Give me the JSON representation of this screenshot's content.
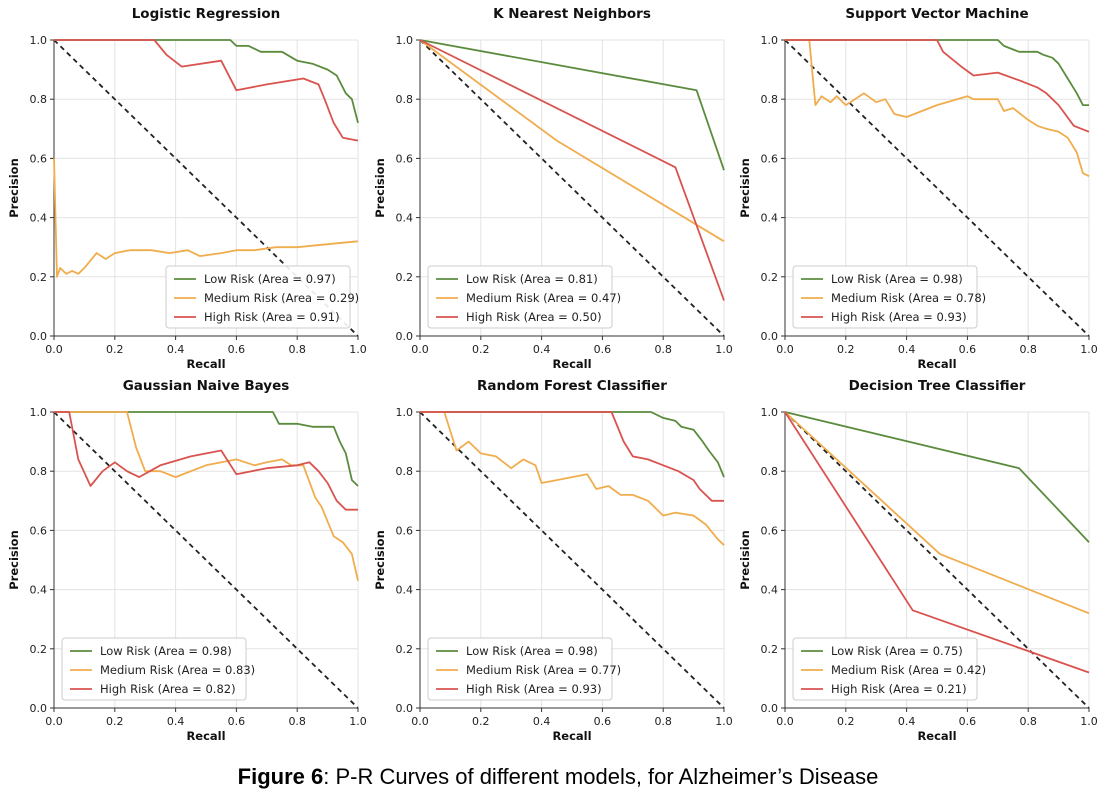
{
  "caption": {
    "label": "Figure 6",
    "text": ": P-R Curves of different models, for Alzheimer’s Disease"
  },
  "colors": {
    "low": "#5b8c3e",
    "medium": "#f0ad4e",
    "high": "#d9534f",
    "diagonal": "#222222"
  },
  "chart_data": [
    {
      "type": "line",
      "title": "Logistic Regression",
      "xlabel": "Recall",
      "ylabel": "Precision",
      "xlim": [
        0,
        1
      ],
      "ylim": [
        0,
        1
      ],
      "xticks": [
        "0.0",
        "0.2",
        "0.4",
        "0.6",
        "0.8",
        "1.0"
      ],
      "yticks": [
        "0.0",
        "0.2",
        "0.4",
        "0.6",
        "0.8",
        "1.0"
      ],
      "grid": true,
      "legend": "bottom-right",
      "series": [
        {
          "name": "Low Risk (Area = 0.97)",
          "color": "low",
          "x": [
            0,
            0.33,
            0.58,
            0.6,
            0.64,
            0.68,
            0.75,
            0.8,
            0.85,
            0.9,
            0.93,
            0.96,
            0.98,
            1.0
          ],
          "y": [
            1,
            1,
            1,
            0.98,
            0.98,
            0.96,
            0.96,
            0.93,
            0.92,
            0.9,
            0.88,
            0.82,
            0.8,
            0.72
          ]
        },
        {
          "name": "Medium Risk (Area = 0.29)",
          "color": "medium",
          "x": [
            0,
            0.01,
            0.02,
            0.04,
            0.06,
            0.08,
            0.1,
            0.14,
            0.17,
            0.2,
            0.25,
            0.28,
            0.32,
            0.38,
            0.44,
            0.48,
            0.55,
            0.6,
            0.66,
            0.73,
            0.8,
            0.9,
            1.0
          ],
          "y": [
            0.6,
            0.2,
            0.23,
            0.21,
            0.22,
            0.21,
            0.23,
            0.28,
            0.26,
            0.28,
            0.29,
            0.29,
            0.29,
            0.28,
            0.29,
            0.27,
            0.28,
            0.29,
            0.29,
            0.3,
            0.3,
            0.31,
            0.32
          ]
        },
        {
          "name": "High Risk (Area = 0.91)",
          "color": "high",
          "x": [
            0,
            0.33,
            0.37,
            0.42,
            0.55,
            0.6,
            0.7,
            0.82,
            0.87,
            0.89,
            0.92,
            0.95,
            1.0
          ],
          "y": [
            1,
            1,
            0.95,
            0.91,
            0.93,
            0.83,
            0.85,
            0.87,
            0.85,
            0.8,
            0.72,
            0.67,
            0.66
          ]
        }
      ]
    },
    {
      "type": "line",
      "title": "K Nearest Neighbors",
      "xlabel": "Recall",
      "ylabel": "Precision",
      "xlim": [
        0,
        1
      ],
      "ylim": [
        0,
        1
      ],
      "xticks": [
        "0.0",
        "0.2",
        "0.4",
        "0.6",
        "0.8",
        "1.0"
      ],
      "yticks": [
        "0.0",
        "0.2",
        "0.4",
        "0.6",
        "0.8",
        "1.0"
      ],
      "grid": true,
      "legend": "bottom-left",
      "series": [
        {
          "name": "Low Risk (Area = 0.81)",
          "color": "low",
          "x": [
            0,
            0.91,
            1.0
          ],
          "y": [
            1,
            0.83,
            0.56
          ]
        },
        {
          "name": "Medium Risk (Area = 0.47)",
          "color": "medium",
          "x": [
            0,
            0.45,
            1.0
          ],
          "y": [
            1,
            0.66,
            0.32
          ]
        },
        {
          "name": "High Risk (Area = 0.50)",
          "color": "high",
          "x": [
            0,
            0.84,
            1.0
          ],
          "y": [
            1,
            0.57,
            0.12
          ]
        }
      ]
    },
    {
      "type": "line",
      "title": "Support Vector Machine",
      "xlabel": "Recall",
      "ylabel": "Precision",
      "xlim": [
        0,
        1
      ],
      "ylim": [
        0,
        1
      ],
      "xticks": [
        "0.0",
        "0.2",
        "0.4",
        "0.6",
        "0.8",
        "1.0"
      ],
      "yticks": [
        "0.0",
        "0.2",
        "0.4",
        "0.6",
        "0.8",
        "1.0"
      ],
      "grid": true,
      "legend": "bottom-left",
      "series": [
        {
          "name": "Low Risk (Area = 0.98)",
          "color": "low",
          "x": [
            0,
            0.7,
            0.72,
            0.77,
            0.83,
            0.85,
            0.88,
            0.9,
            0.93,
            0.96,
            0.98,
            1.0
          ],
          "y": [
            1,
            1,
            0.98,
            0.96,
            0.96,
            0.95,
            0.94,
            0.92,
            0.87,
            0.82,
            0.78,
            0.78
          ]
        },
        {
          "name": "Medium Risk (Area = 0.78)",
          "color": "medium",
          "x": [
            0,
            0.08,
            0.1,
            0.12,
            0.15,
            0.17,
            0.2,
            0.23,
            0.26,
            0.3,
            0.33,
            0.36,
            0.4,
            0.5,
            0.6,
            0.62,
            0.66,
            0.7,
            0.72,
            0.75,
            0.8,
            0.83,
            0.86,
            0.9,
            0.93,
            0.96,
            0.98,
            1.0
          ],
          "y": [
            1,
            1,
            0.78,
            0.81,
            0.79,
            0.81,
            0.78,
            0.8,
            0.82,
            0.79,
            0.8,
            0.75,
            0.74,
            0.78,
            0.81,
            0.8,
            0.8,
            0.8,
            0.76,
            0.77,
            0.73,
            0.71,
            0.7,
            0.69,
            0.67,
            0.62,
            0.55,
            0.54
          ]
        },
        {
          "name": "High Risk (Area = 0.93)",
          "color": "high",
          "x": [
            0,
            0.5,
            0.52,
            0.58,
            0.62,
            0.7,
            0.78,
            0.83,
            0.86,
            0.9,
            0.95,
            1.0
          ],
          "y": [
            1,
            1,
            0.96,
            0.91,
            0.88,
            0.89,
            0.86,
            0.84,
            0.82,
            0.78,
            0.71,
            0.69
          ]
        }
      ]
    },
    {
      "type": "line",
      "title": "Gaussian Naive Bayes",
      "xlabel": "Recall",
      "ylabel": "Precision",
      "xlim": [
        0,
        1
      ],
      "ylim": [
        0,
        1
      ],
      "xticks": [
        "0.0",
        "0.2",
        "0.4",
        "0.6",
        "0.8",
        "1.0"
      ],
      "yticks": [
        "0.0",
        "0.2",
        "0.4",
        "0.6",
        "0.8",
        "1.0"
      ],
      "grid": true,
      "legend": "bottom-left",
      "series": [
        {
          "name": "Low Risk (Area = 0.98)",
          "color": "low",
          "x": [
            0,
            0.72,
            0.74,
            0.8,
            0.85,
            0.88,
            0.92,
            0.94,
            0.96,
            0.98,
            1.0
          ],
          "y": [
            1,
            1,
            0.96,
            0.96,
            0.95,
            0.95,
            0.95,
            0.9,
            0.86,
            0.77,
            0.75
          ]
        },
        {
          "name": "Medium Risk (Area = 0.83)",
          "color": "medium",
          "x": [
            0,
            0.24,
            0.27,
            0.3,
            0.35,
            0.4,
            0.5,
            0.6,
            0.66,
            0.7,
            0.75,
            0.78,
            0.82,
            0.86,
            0.88,
            0.92,
            0.95,
            0.98,
            1.0
          ],
          "y": [
            1,
            1,
            0.88,
            0.8,
            0.8,
            0.78,
            0.82,
            0.84,
            0.82,
            0.83,
            0.84,
            0.82,
            0.82,
            0.71,
            0.68,
            0.58,
            0.56,
            0.52,
            0.43
          ]
        },
        {
          "name": "High Risk (Area = 0.82)",
          "color": "high",
          "x": [
            0,
            0.05,
            0.08,
            0.12,
            0.16,
            0.2,
            0.24,
            0.28,
            0.35,
            0.45,
            0.55,
            0.6,
            0.7,
            0.8,
            0.84,
            0.87,
            0.9,
            0.93,
            0.96,
            1.0
          ],
          "y": [
            1,
            1,
            0.84,
            0.75,
            0.8,
            0.83,
            0.8,
            0.78,
            0.82,
            0.85,
            0.87,
            0.79,
            0.81,
            0.82,
            0.83,
            0.8,
            0.76,
            0.7,
            0.67,
            0.67
          ]
        }
      ]
    },
    {
      "type": "line",
      "title": "Random Forest Classifier",
      "xlabel": "Recall",
      "ylabel": "Precision",
      "xlim": [
        0,
        1
      ],
      "ylim": [
        0,
        1
      ],
      "xticks": [
        "0.0",
        "0.2",
        "0.4",
        "0.6",
        "0.8",
        "1.0"
      ],
      "yticks": [
        "0.0",
        "0.2",
        "0.4",
        "0.6",
        "0.8",
        "1.0"
      ],
      "grid": true,
      "legend": "bottom-left",
      "series": [
        {
          "name": "Low Risk (Area = 0.98)",
          "color": "low",
          "x": [
            0,
            0.76,
            0.8,
            0.84,
            0.86,
            0.9,
            0.93,
            0.95,
            0.98,
            1.0
          ],
          "y": [
            1,
            1,
            0.98,
            0.97,
            0.95,
            0.94,
            0.9,
            0.87,
            0.83,
            0.78
          ]
        },
        {
          "name": "Medium Risk (Area = 0.77)",
          "color": "medium",
          "x": [
            0,
            0.08,
            0.12,
            0.16,
            0.2,
            0.25,
            0.3,
            0.34,
            0.38,
            0.4,
            0.45,
            0.5,
            0.55,
            0.58,
            0.62,
            0.66,
            0.7,
            0.75,
            0.8,
            0.84,
            0.9,
            0.94,
            0.98,
            1.0
          ],
          "y": [
            1,
            1,
            0.87,
            0.9,
            0.86,
            0.85,
            0.81,
            0.84,
            0.82,
            0.76,
            0.77,
            0.78,
            0.79,
            0.74,
            0.75,
            0.72,
            0.72,
            0.7,
            0.65,
            0.66,
            0.65,
            0.62,
            0.57,
            0.55
          ]
        },
        {
          "name": "High Risk (Area = 0.93)",
          "color": "high",
          "x": [
            0,
            0.63,
            0.67,
            0.7,
            0.75,
            0.8,
            0.85,
            0.9,
            0.92,
            0.96,
            1.0
          ],
          "y": [
            1,
            1,
            0.9,
            0.85,
            0.84,
            0.82,
            0.8,
            0.77,
            0.74,
            0.7,
            0.7
          ]
        }
      ]
    },
    {
      "type": "line",
      "title": "Decision Tree Classifier",
      "xlabel": "Recall",
      "ylabel": "Precision",
      "xlim": [
        0,
        1
      ],
      "ylim": [
        0,
        1
      ],
      "xticks": [
        "0.0",
        "0.2",
        "0.4",
        "0.6",
        "0.8",
        "1.0"
      ],
      "yticks": [
        "0.0",
        "0.2",
        "0.4",
        "0.6",
        "0.8",
        "1.0"
      ],
      "grid": true,
      "legend": "bottom-left",
      "series": [
        {
          "name": "Low Risk (Area = 0.75)",
          "color": "low",
          "x": [
            0,
            0.77,
            1.0
          ],
          "y": [
            1,
            0.81,
            0.56
          ]
        },
        {
          "name": "Medium Risk (Area = 0.42)",
          "color": "medium",
          "x": [
            0,
            0.51,
            1.0
          ],
          "y": [
            1,
            0.52,
            0.32
          ]
        },
        {
          "name": "High Risk (Area = 0.21)",
          "color": "high",
          "x": [
            0,
            0.42,
            1.0
          ],
          "y": [
            1,
            0.33,
            0.12
          ]
        }
      ]
    }
  ]
}
